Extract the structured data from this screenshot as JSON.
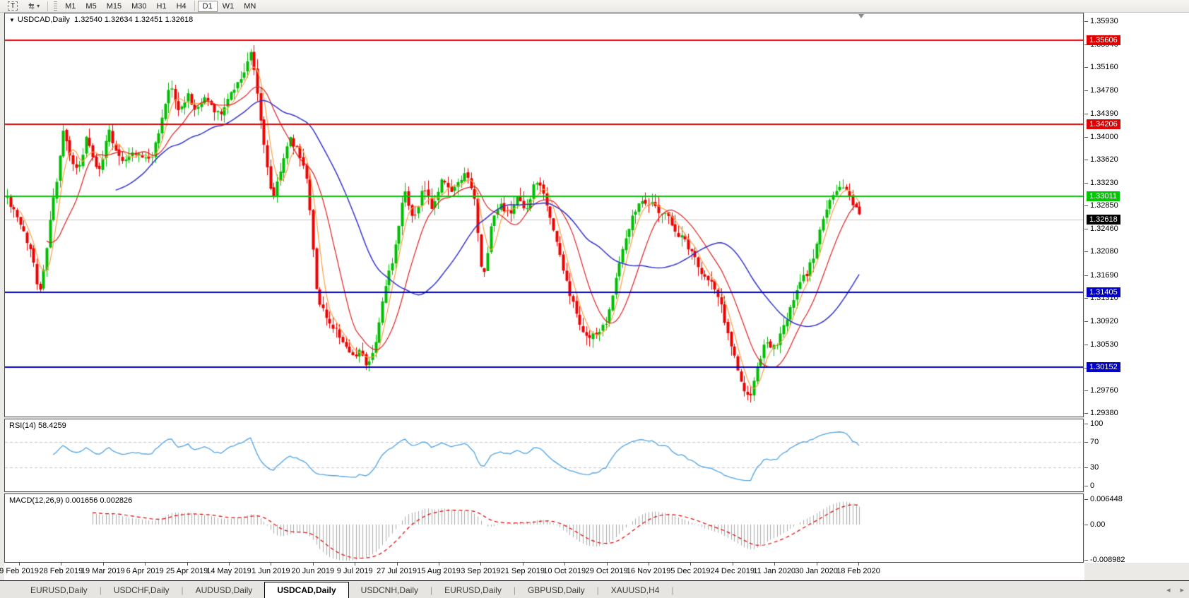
{
  "icons": {
    "title_marker": "▼",
    "dropdown_caret": "▾",
    "scroll_left": "◂",
    "scroll_right": "▸"
  },
  "toolbar": {
    "t_tool_label": "T",
    "timeframes": [
      "M1",
      "M5",
      "M15",
      "M30",
      "H1",
      "H4",
      "D1",
      "W1",
      "MN"
    ],
    "active_timeframe": "D1"
  },
  "chart": {
    "title_symbol": "USDCAD,Daily",
    "ohlc_text": "1.32540 1.32634 1.32451 1.32618",
    "colors": {
      "up": "#00BE00",
      "down": "#EE0000",
      "ma_fast": "#FF9F40",
      "ma_mid": "#E02020",
      "ma_slow": "#3333CC",
      "resistance": "#E00000",
      "support": "#0000C8",
      "pivot": "#00C800",
      "current_line": "#C8C8C8",
      "current_badge": "#000000"
    },
    "price_axis_ticks": [
      "1.35930",
      "1.35540",
      "1.35160",
      "1.34780",
      "1.34390",
      "1.34000",
      "1.33620",
      "1.33230",
      "1.32850",
      "1.32460",
      "1.32080",
      "1.31690",
      "1.31310",
      "1.30920",
      "1.30530",
      "1.30140",
      "1.29760",
      "1.29380"
    ],
    "levels": [
      {
        "label": "1.35606",
        "price": 1.35606,
        "color": "#E00000"
      },
      {
        "label": "1.34206",
        "price": 1.34206,
        "color": "#E00000"
      },
      {
        "label": "1.33011",
        "price": 1.33011,
        "color": "#00C800"
      },
      {
        "label": "1.31405",
        "price": 1.31405,
        "color": "#0000C8"
      },
      {
        "label": "1.30152",
        "price": 1.30152,
        "color": "#0000C8"
      }
    ],
    "current_price": {
      "label": "1.32618",
      "price": 1.32618
    },
    "x_axis_dates": [
      "9 Feb 2019",
      "28 Feb 2019",
      "19 Mar 2019",
      "6 Apr 2019",
      "25 Apr 2019",
      "14 May 2019",
      "1 Jun 2019",
      "20 Jun 2019",
      "9 Jul 2019",
      "27 Jul 2019",
      "15 Aug 2019",
      "3 Sep 2019",
      "21 Sep 2019",
      "10 Oct 2019",
      "29 Oct 2019",
      "16 Nov 2019",
      "5 Dec 2019",
      "24 Dec 2019",
      "11 Jan 2020",
      "30 Jan 2020",
      "18 Feb 2020"
    ],
    "price_path": [
      [
        10,
        1.3298
      ],
      [
        22,
        1.3268
      ],
      [
        32,
        1.3242
      ],
      [
        45,
        1.3205
      ],
      [
        55,
        1.3138
      ],
      [
        62,
        1.318
      ],
      [
        70,
        1.3255
      ],
      [
        80,
        1.333
      ],
      [
        90,
        1.3412
      ],
      [
        100,
        1.336
      ],
      [
        112,
        1.3345
      ],
      [
        122,
        1.3398
      ],
      [
        132,
        1.336
      ],
      [
        142,
        1.3342
      ],
      [
        152,
        1.3415
      ],
      [
        163,
        1.338
      ],
      [
        175,
        1.336
      ],
      [
        188,
        1.3375
      ],
      [
        200,
        1.3368
      ],
      [
        212,
        1.336
      ],
      [
        225,
        1.3405
      ],
      [
        240,
        1.3488
      ],
      [
        252,
        1.3442
      ],
      [
        265,
        1.347
      ],
      [
        278,
        1.3442
      ],
      [
        290,
        1.3468
      ],
      [
        302,
        1.3445
      ],
      [
        315,
        1.3442
      ],
      [
        328,
        1.3478
      ],
      [
        342,
        1.35
      ],
      [
        355,
        1.3542
      ],
      [
        363,
        1.348
      ],
      [
        372,
        1.3398
      ],
      [
        385,
        1.3292
      ],
      [
        398,
        1.3352
      ],
      [
        410,
        1.3398
      ],
      [
        422,
        1.3375
      ],
      [
        435,
        1.333
      ],
      [
        448,
        1.314
      ],
      [
        460,
        1.3098
      ],
      [
        472,
        1.3082
      ],
      [
        485,
        1.306
      ],
      [
        497,
        1.3028
      ],
      [
        510,
        1.3042
      ],
      [
        520,
        1.3016
      ],
      [
        532,
        1.3062
      ],
      [
        545,
        1.3148
      ],
      [
        558,
        1.3208
      ],
      [
        572,
        1.3318
      ],
      [
        585,
        1.3258
      ],
      [
        598,
        1.3315
      ],
      [
        612,
        1.328
      ],
      [
        625,
        1.3328
      ],
      [
        638,
        1.3308
      ],
      [
        650,
        1.3322
      ],
      [
        660,
        1.3338
      ],
      [
        672,
        1.3288
      ],
      [
        683,
        1.315
      ],
      [
        695,
        1.3255
      ],
      [
        708,
        1.3288
      ],
      [
        720,
        1.3268
      ],
      [
        732,
        1.3295
      ],
      [
        745,
        1.3272
      ],
      [
        758,
        1.3328
      ],
      [
        770,
        1.3302
      ],
      [
        782,
        1.325
      ],
      [
        795,
        1.3188
      ],
      [
        808,
        1.313
      ],
      [
        820,
        1.3088
      ],
      [
        832,
        1.3062
      ],
      [
        845,
        1.3072
      ],
      [
        858,
        1.3088
      ],
      [
        870,
        1.3158
      ],
      [
        882,
        1.322
      ],
      [
        895,
        1.3268
      ],
      [
        908,
        1.3298
      ],
      [
        920,
        1.3288
      ],
      [
        932,
        1.3278
      ],
      [
        945,
        1.3268
      ],
      [
        958,
        1.3238
      ],
      [
        970,
        1.3225
      ],
      [
        982,
        1.32
      ],
      [
        995,
        1.3168
      ],
      [
        1008,
        1.3155
      ],
      [
        1020,
        1.3118
      ],
      [
        1032,
        1.3062
      ],
      [
        1042,
        1.302
      ],
      [
        1052,
        1.2972
      ],
      [
        1062,
        1.2968
      ],
      [
        1072,
        1.3012
      ],
      [
        1082,
        1.3055
      ],
      [
        1092,
        1.3048
      ],
      [
        1102,
        1.3058
      ],
      [
        1112,
        1.3092
      ],
      [
        1122,
        1.3122
      ],
      [
        1132,
        1.3158
      ],
      [
        1142,
        1.3172
      ],
      [
        1152,
        1.3205
      ],
      [
        1162,
        1.3248
      ],
      [
        1172,
        1.3292
      ],
      [
        1182,
        1.3308
      ],
      [
        1192,
        1.3318
      ],
      [
        1200,
        1.3308
      ],
      [
        1207,
        1.3288
      ],
      [
        1213,
        1.3275
      ],
      [
        1218,
        1.3262
      ]
    ]
  },
  "rsi": {
    "label": "RSI(14) 58.4259",
    "axis_labels": [
      "100",
      "70",
      "30",
      "0"
    ],
    "axis_values": [
      100,
      70,
      30,
      0
    ],
    "dashed_levels": [
      70,
      30
    ],
    "line_color": "#4FA3E3"
  },
  "macd": {
    "label": "MACD(12,26,9) 0.001656 0.002826",
    "axis_labels": [
      "0.006448",
      "0.00",
      "-0.008982"
    ],
    "axis_values": [
      0.006448,
      0,
      -0.008982
    ],
    "histogram_color": "#ACACAC",
    "signal_color": "#E00000"
  },
  "tabs": {
    "items": [
      "EURUSD,Daily",
      "USDCHF,Daily",
      "AUDUSD,Daily",
      "USDCAD,Daily",
      "USDCNH,Daily",
      "EURUSD,Daily",
      "GBPUSD,Daily",
      "XAUUSD,H4"
    ],
    "active_index": 3
  }
}
